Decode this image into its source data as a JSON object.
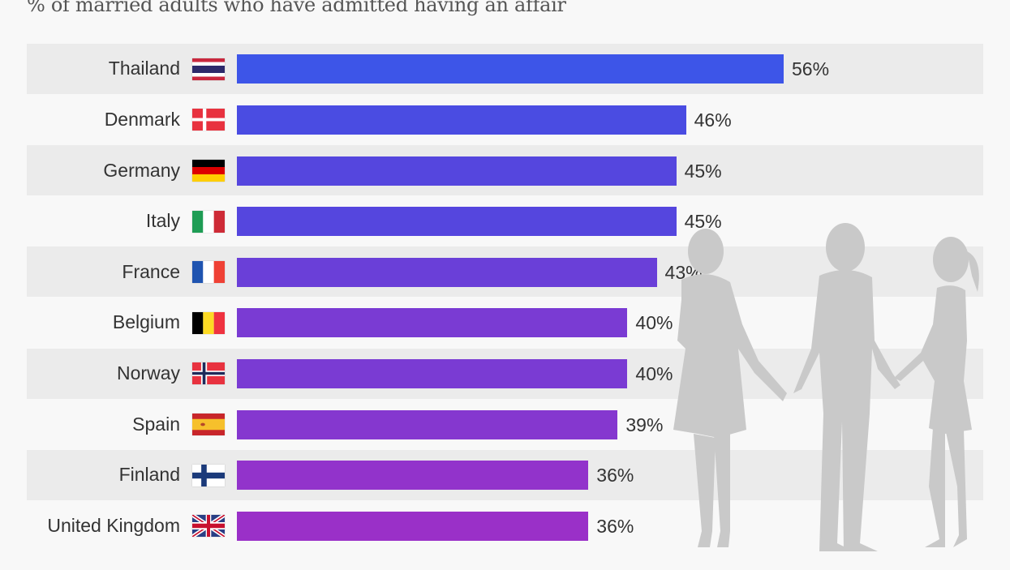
{
  "chart_data": {
    "type": "bar",
    "orientation": "horizontal",
    "title": "",
    "subtitle": "% of married adults who have admitted having an affair",
    "xlabel": "",
    "ylabel": "",
    "xlim": [
      0,
      56
    ],
    "grid": false,
    "legend": "none",
    "categories": [
      "Thailand",
      "Denmark",
      "Germany",
      "Italy",
      "France",
      "Belgium",
      "Norway",
      "Spain",
      "Finland",
      "United Kingdom"
    ],
    "values": [
      56,
      46,
      45,
      45,
      43,
      40,
      40,
      39,
      36,
      36
    ],
    "value_labels": [
      "56%",
      "46%",
      "45%",
      "45%",
      "43%",
      "40%",
      "40%",
      "39%",
      "36%",
      "36%"
    ],
    "flags": [
      "thailand-flag-icon",
      "denmark-flag-icon",
      "germany-flag-icon",
      "italy-flag-icon",
      "france-flag-icon",
      "belgium-flag-icon",
      "norway-flag-icon",
      "spain-flag-icon",
      "finland-flag-icon",
      "uk-flag-icon"
    ],
    "bar_colors": [
      "#3d55e8",
      "#4a4ce2",
      "#5546de",
      "#5546de",
      "#6a3fd8",
      "#7a3bd3",
      "#7a3bd3",
      "#8537cf",
      "#9233cb",
      "#9a30c8"
    ],
    "decoration": "people-silhouette-icon"
  }
}
